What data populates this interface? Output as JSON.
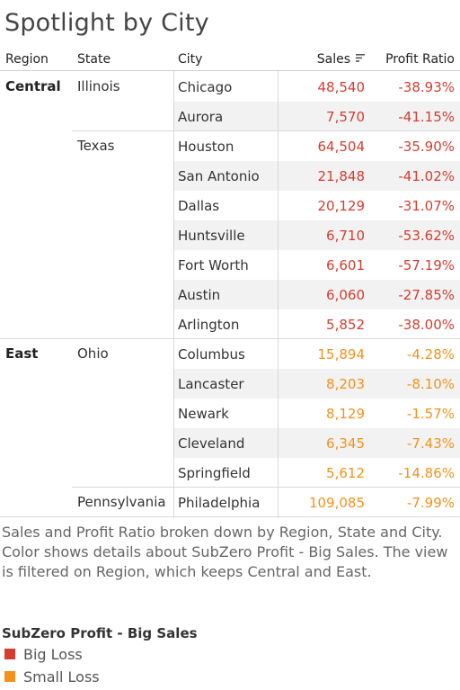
{
  "title": "Spotlight by City",
  "headers": {
    "region": "Region",
    "state": "State",
    "city": "City",
    "sales": "Sales",
    "ratio": "Profit Ratio"
  },
  "colors": {
    "big_loss": "#d43d2f",
    "small_loss": "#f2921c"
  },
  "rows": [
    {
      "region": "Central",
      "state": "Illinois",
      "city": "Chicago",
      "sales": "48,540",
      "ratio": "-38.93%",
      "cat": "big_loss"
    },
    {
      "region": "",
      "state": "",
      "city": "Aurora",
      "sales": "7,570",
      "ratio": "-41.15%",
      "cat": "big_loss"
    },
    {
      "region": "",
      "state": "Texas",
      "city": "Houston",
      "sales": "64,504",
      "ratio": "-35.90%",
      "cat": "big_loss"
    },
    {
      "region": "",
      "state": "",
      "city": "San Antonio",
      "sales": "21,848",
      "ratio": "-41.02%",
      "cat": "big_loss"
    },
    {
      "region": "",
      "state": "",
      "city": "Dallas",
      "sales": "20,129",
      "ratio": "-31.07%",
      "cat": "big_loss"
    },
    {
      "region": "",
      "state": "",
      "city": "Huntsville",
      "sales": "6,710",
      "ratio": "-53.62%",
      "cat": "big_loss"
    },
    {
      "region": "",
      "state": "",
      "city": "Fort Worth",
      "sales": "6,601",
      "ratio": "-57.19%",
      "cat": "big_loss"
    },
    {
      "region": "",
      "state": "",
      "city": "Austin",
      "sales": "6,060",
      "ratio": "-27.85%",
      "cat": "big_loss"
    },
    {
      "region": "",
      "state": "",
      "city": "Arlington",
      "sales": "5,852",
      "ratio": "-38.00%",
      "cat": "big_loss"
    },
    {
      "region": "East",
      "state": "Ohio",
      "city": "Columbus",
      "sales": "15,894",
      "ratio": "-4.28%",
      "cat": "small_loss"
    },
    {
      "region": "",
      "state": "",
      "city": "Lancaster",
      "sales": "8,203",
      "ratio": "-8.10%",
      "cat": "small_loss"
    },
    {
      "region": "",
      "state": "",
      "city": "Newark",
      "sales": "8,129",
      "ratio": "-1.57%",
      "cat": "small_loss"
    },
    {
      "region": "",
      "state": "",
      "city": "Cleveland",
      "sales": "6,345",
      "ratio": "-7.43%",
      "cat": "small_loss"
    },
    {
      "region": "",
      "state": "",
      "city": "Springfield",
      "sales": "5,612",
      "ratio": "-14.86%",
      "cat": "small_loss"
    },
    {
      "region": "",
      "state": "Pennsylvania",
      "city": "Philadelphia",
      "sales": "109,085",
      "ratio": "-7.99%",
      "cat": "small_loss"
    }
  ],
  "caption": "Sales and Profit Ratio broken down by Region, State and City.  Color shows details about SubZero Profit - Big Sales.  The view is filtered on Region, which keeps Central and East.",
  "legend": {
    "title": "SubZero Profit - Big Sales",
    "items": [
      {
        "label": "Big Loss",
        "cat": "big_loss"
      },
      {
        "label": "Small Loss",
        "cat": "small_loss"
      }
    ]
  }
}
